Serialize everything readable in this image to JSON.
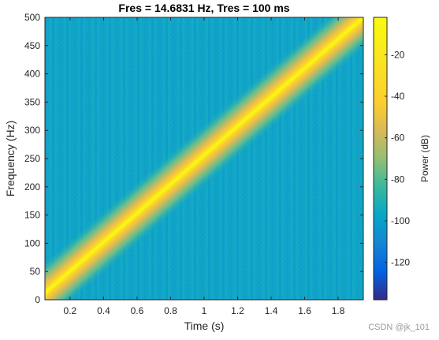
{
  "chart_data": {
    "type": "heatmap",
    "subtype": "spectrogram",
    "title": "Fres = 14.6831 Hz, Tres = 100 ms",
    "xlabel": "Time (s)",
    "ylabel": "Frequency (Hz)",
    "xlim": [
      0.05,
      1.95
    ],
    "ylim": [
      0,
      500
    ],
    "x_ticks": [
      0.2,
      0.4,
      0.6,
      0.8,
      1,
      1.2,
      1.4,
      1.6,
      1.8
    ],
    "y_ticks": [
      0,
      50,
      100,
      150,
      200,
      250,
      300,
      350,
      400,
      450,
      500
    ],
    "ridge": {
      "description": "linear chirp, peak power along diagonal",
      "points": [
        [
          0.05,
          12
        ],
        [
          1.95,
          500
        ]
      ],
      "peak_power_db": -3,
      "background_power_db": -82
    },
    "colorbar": {
      "label": "Power (dB)",
      "range": [
        -138,
        -2
      ],
      "ticks": [
        -20,
        -40,
        -60,
        -80,
        -100,
        -120
      ],
      "colormap": "parula"
    }
  },
  "watermark": "CSDN @jk_101"
}
